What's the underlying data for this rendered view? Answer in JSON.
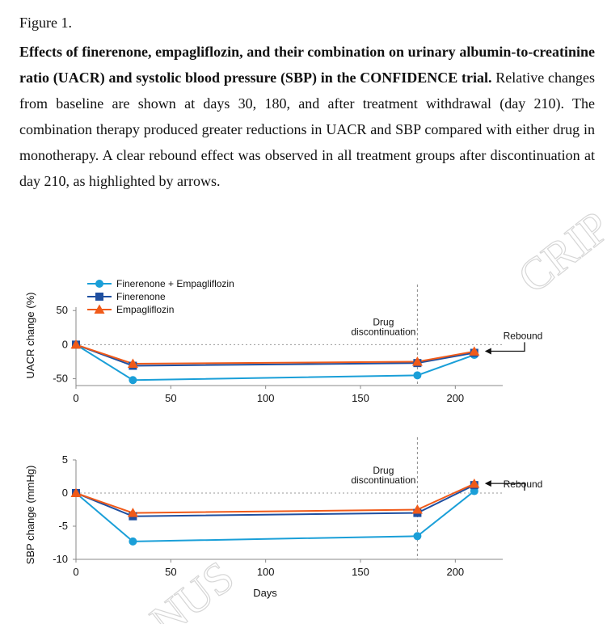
{
  "figure_label": "Figure 1.",
  "caption": {
    "title": "Effects of finerenone, empagliflozin, and their combination on urinary albumin-to-creatinine ratio (UACR) and systolic blood pressure (SBP) in the CONFIDENCE trial.",
    "body": "Relative changes from baseline are shown at days 30, 180, and after treatment withdrawal (day 210). The combination therapy produced greater reductions in UACR and SBP compared with either drug in monotherapy. A clear rebound effect was observed in all treatment groups after discontinuation at day 210, as highlighted by arrows."
  },
  "watermark": {
    "top_text": "CRIP",
    "bottom_text": "NUS"
  },
  "colors": {
    "combo": "#1a9fd8",
    "finerenone": "#1f4fa0",
    "empagliflozin": "#f05a19"
  },
  "chart_data": [
    {
      "type": "line",
      "title": "",
      "xlabel": "",
      "ylabel": "UACR change (%)",
      "xlim": [
        0,
        225
      ],
      "ylim": [
        -60,
        55
      ],
      "xticks": [
        0,
        50,
        100,
        150,
        200
      ],
      "yticks": [
        50,
        0,
        -50
      ],
      "x": [
        0,
        30,
        180,
        210
      ],
      "series": [
        {
          "name": "Finerenone + Empagliflozin",
          "marker": "circle",
          "values": [
            0,
            -52,
            -45,
            -15
          ]
        },
        {
          "name": "Finerenone",
          "marker": "square",
          "values": [
            0,
            -31,
            -27,
            -12
          ]
        },
        {
          "name": "Empagliflozin",
          "marker": "triangle",
          "values": [
            0,
            -28,
            -25,
            -10
          ]
        }
      ],
      "annotations": {
        "discontinuation_day": 180,
        "discontinuation_label": [
          "Drug",
          "discontinuation"
        ],
        "rebound_label": "Rebound"
      },
      "legend_position": "top-left"
    },
    {
      "type": "line",
      "title": "",
      "xlabel": "Days",
      "ylabel": "SBP change (mmHg)",
      "xlim": [
        0,
        225
      ],
      "ylim": [
        -10,
        5
      ],
      "xticks": [
        0,
        50,
        100,
        150,
        200
      ],
      "yticks": [
        5,
        0,
        -5,
        -10
      ],
      "x": [
        0,
        30,
        180,
        210
      ],
      "series": [
        {
          "name": "Finerenone + Empagliflozin",
          "marker": "circle",
          "values": [
            0,
            -7.3,
            -6.5,
            0.3
          ]
        },
        {
          "name": "Finerenone",
          "marker": "square",
          "values": [
            0,
            -3.5,
            -3.0,
            1.2
          ]
        },
        {
          "name": "Empagliflozin",
          "marker": "triangle",
          "values": [
            0,
            -3.0,
            -2.5,
            1.4
          ]
        }
      ],
      "annotations": {
        "discontinuation_day": 180,
        "discontinuation_label": [
          "Drug",
          "discontinuation"
        ],
        "rebound_label": "Rebound"
      },
      "legend_position": "none"
    }
  ]
}
